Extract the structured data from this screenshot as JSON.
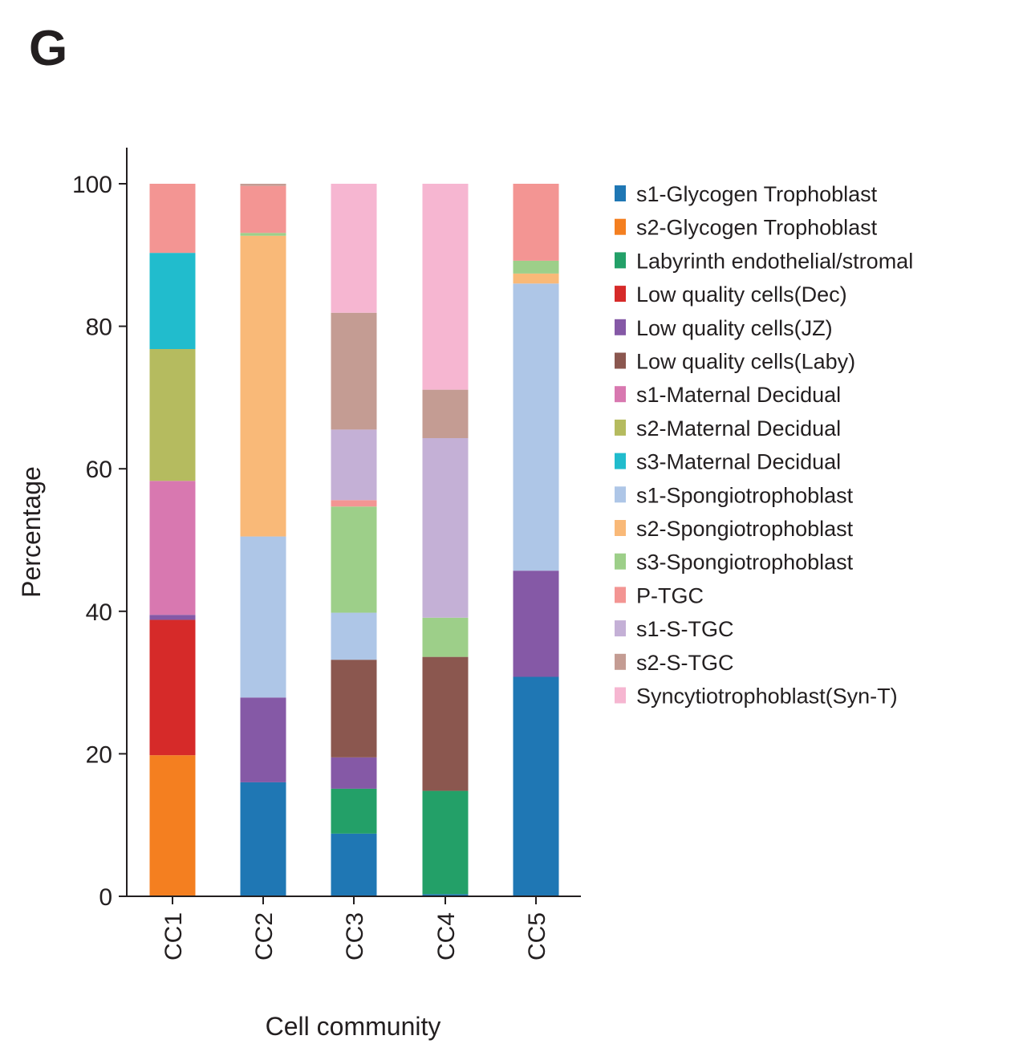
{
  "panel_label": "G",
  "chart_data": {
    "type": "bar",
    "stacked": true,
    "title": "",
    "xlabel": "Cell community",
    "ylabel": "Percentage",
    "ylim": [
      0,
      100
    ],
    "yticks": [
      "0",
      "20",
      "40",
      "60",
      "80",
      "100"
    ],
    "ytick_values": [
      0,
      20,
      40,
      60,
      80,
      100
    ],
    "categories": [
      "CC1",
      "CC2",
      "CC3",
      "CC4",
      "CC5"
    ],
    "legend_position": "right",
    "grid": false,
    "series": [
      {
        "name": "s1-Glycogen Trophoblast",
        "color": "#1f77b4",
        "values": [
          0,
          16.0,
          8.8,
          0.3,
          30.8
        ]
      },
      {
        "name": "s2-Glycogen Trophoblast",
        "color": "#f47f20",
        "values": [
          19.8,
          0,
          0,
          0,
          0
        ]
      },
      {
        "name": "Labyrinth endothelial/stromal",
        "color": "#23a068",
        "values": [
          0,
          0,
          6.3,
          14.5,
          0
        ]
      },
      {
        "name": "Low quality cells(Dec)",
        "color": "#d62a29",
        "values": [
          19.0,
          0,
          0,
          0,
          0
        ]
      },
      {
        "name": "Low quality cells(JZ)",
        "color": "#8559a6",
        "values": [
          0.7,
          11.9,
          4.4,
          0,
          14.9
        ]
      },
      {
        "name": "Low quality cells(Laby)",
        "color": "#8b574f",
        "values": [
          0,
          0,
          13.7,
          18.8,
          0
        ]
      },
      {
        "name": "s1-Maternal Decidual",
        "color": "#d878b0",
        "values": [
          18.8,
          0,
          0,
          0,
          0
        ]
      },
      {
        "name": "s2-Maternal Decidual",
        "color": "#b5bb5f",
        "values": [
          18.5,
          0,
          0,
          0,
          0
        ]
      },
      {
        "name": "s3-Maternal Decidual",
        "color": "#21bccd",
        "values": [
          13.5,
          0,
          0,
          0,
          0
        ]
      },
      {
        "name": "s1-Spongiotrophoblast",
        "color": "#aec6e7",
        "values": [
          0,
          22.6,
          6.6,
          0,
          40.3
        ]
      },
      {
        "name": "s2-Spongiotrophoblast",
        "color": "#f9b978",
        "values": [
          0,
          42.2,
          0,
          0,
          1.4
        ]
      },
      {
        "name": "s3-Spongiotrophoblast",
        "color": "#9dcf89",
        "values": [
          0,
          0.4,
          14.9,
          5.5,
          1.8
        ]
      },
      {
        "name": "P-TGC",
        "color": "#f39593",
        "values": [
          9.7,
          6.6,
          0.9,
          0,
          10.8
        ]
      },
      {
        "name": "s1-S-TGC",
        "color": "#c4b0d6",
        "values": [
          0,
          0,
          9.9,
          25.2,
          0
        ]
      },
      {
        "name": "s2-S-TGC",
        "color": "#c49c93",
        "values": [
          0,
          0.3,
          16.4,
          6.8,
          0
        ]
      },
      {
        "name": "Syncytiotrophoblast(Syn-T)",
        "color": "#f6b6d1",
        "values": [
          0,
          0,
          18.1,
          28.9,
          0
        ]
      }
    ]
  }
}
